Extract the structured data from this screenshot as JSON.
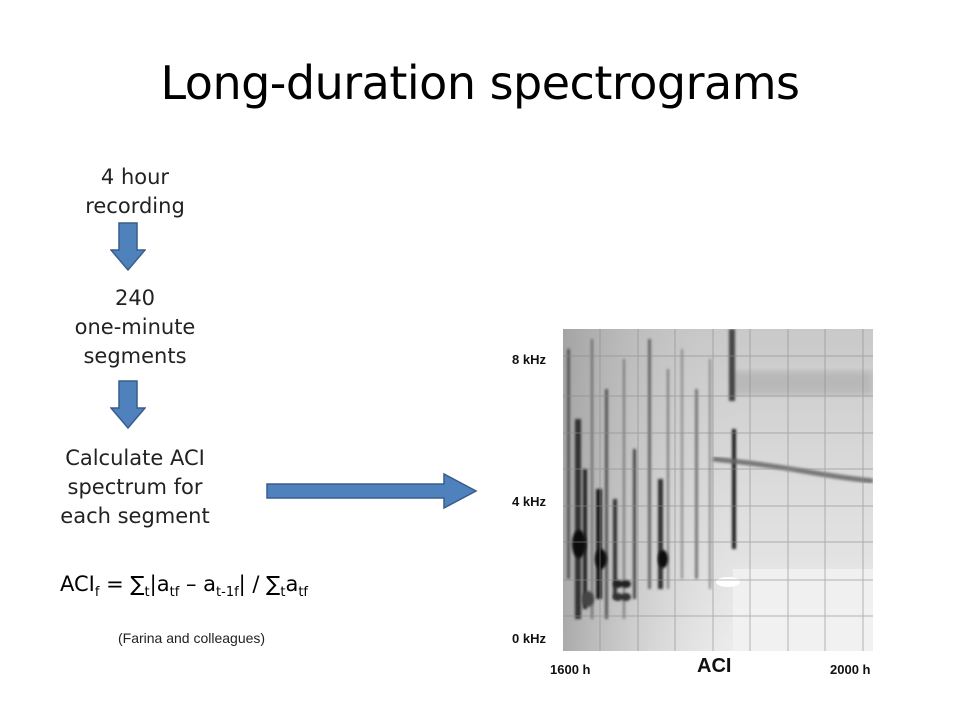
{
  "slide": {
    "title": "Long-duration spectrograms"
  },
  "flow": {
    "step1": [
      "4 hour",
      "recording"
    ],
    "step2": [
      "240",
      "one-minute",
      "segments"
    ],
    "step3": [
      "Calculate ACI",
      "spectrum for",
      "each segment"
    ],
    "formula": {
      "lhs": "ACI",
      "lhs_sub": "f",
      "eq": " = ∑",
      "sum1_sub": "t",
      "abs_open": "|a",
      "a1_sub": "tf",
      "minus": " – a",
      "a2_sub": "t-1f",
      "abs_close": "| / ∑",
      "sum2_sub": "t",
      "a3": "a",
      "a3_sub": "tf"
    },
    "credit": "(Farina and colleagues)"
  },
  "spectrogram": {
    "y_labels": [
      "8 kHz",
      "4 kHz",
      "0 kHz"
    ],
    "x_labels": [
      "1600 h",
      "2000 h"
    ],
    "caption": "ACI"
  },
  "colors": {
    "arrow_fill": "#4f81bd",
    "arrow_stroke": "#385d8a"
  }
}
